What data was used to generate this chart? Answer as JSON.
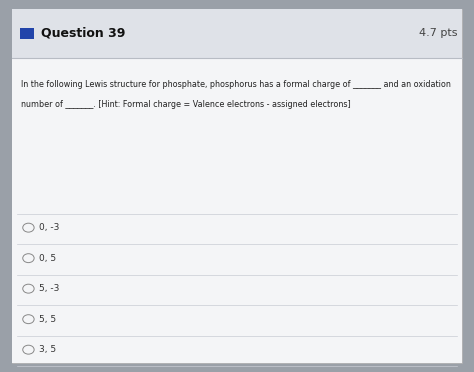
{
  "title": "Question 39",
  "pts": "4.7 pts",
  "line1": "In the following Lewis structure for phosphate, phosphorus has a formal charge of _______ and an oxidation",
  "line2": "number of _______. [Hint: Formal charge = Valence electrons - assigned electrons]",
  "choices": [
    "0, -3",
    "0, 5",
    "5, -3",
    "5, 5",
    "3, 5"
  ],
  "outer_bg": "#9aa0a8",
  "card_bg": "#eceef2",
  "header_bg": "#dfe2e8",
  "content_bg": "#f4f5f7",
  "title_color": "#111111",
  "pts_color": "#444444",
  "text_color": "#222222",
  "choice_color": "#333333",
  "icon_color": "#2244aa",
  "divider_color": "#c8ccd4",
  "header_divider": "#b8bcc4"
}
